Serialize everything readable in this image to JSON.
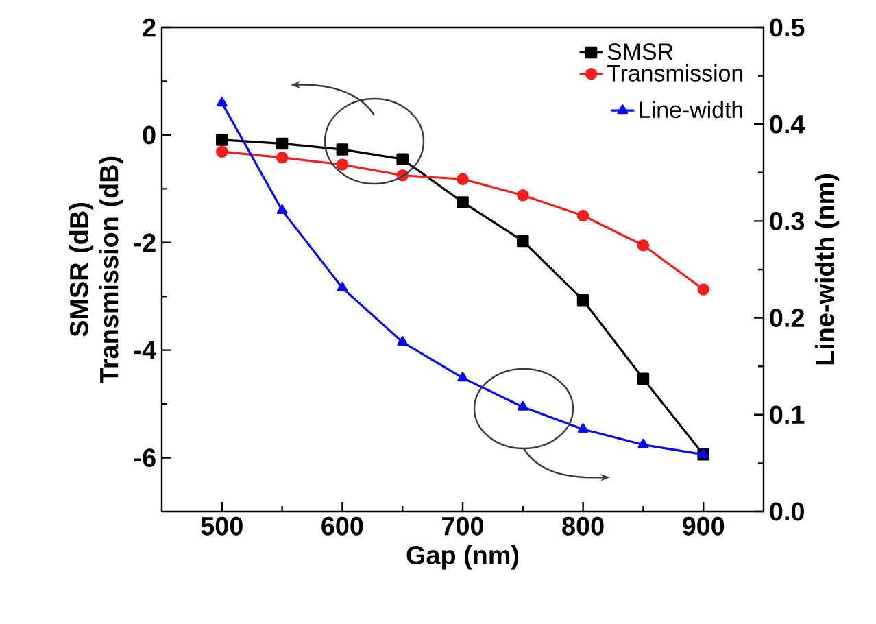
{
  "chart_data": {
    "type": "line",
    "xlabel": "Gap (nm)",
    "ylabel": "SMSR (dB) Transmission (dB)",
    "y2label": "Line-width (nm)",
    "x": [
      500,
      550,
      600,
      650,
      700,
      750,
      800,
      850,
      900
    ],
    "xlim": [
      450,
      950
    ],
    "xticks": [
      500,
      600,
      700,
      800,
      900
    ],
    "ylim": [
      -7,
      2
    ],
    "yticks": [
      -6,
      -4,
      -2,
      0,
      2
    ],
    "y2lim": [
      0,
      0.5
    ],
    "y2ticks": [
      {
        "value": 0,
        "label": "0.0"
      },
      0.1,
      0.2,
      0.3,
      0.4,
      0.5
    ],
    "legend": "top right",
    "grid": false,
    "line_style": "solid",
    "series": [
      {
        "name": "SMSR",
        "color": "#000000",
        "marker": "square",
        "values": [
          -0.09,
          -0.16,
          -0.27,
          -0.45,
          -1.25,
          -1.97,
          -3.07,
          -4.53,
          -5.94
        ]
      },
      {
        "name": "Transmission",
        "color": "#f02020",
        "marker": "circle",
        "values": [
          -0.31,
          -0.42,
          -0.55,
          -0.75,
          -0.82,
          -1.12,
          -1.5,
          -2.05,
          -2.87
        ]
      },
      {
        "name": "Line-width",
        "color": "#0a0af0",
        "marker": "triangle",
        "axis": "y2",
        "values": [
          0.422,
          0.311,
          0.231,
          0.175,
          0.138,
          0.108,
          0.085,
          0.069,
          0.059
        ]
      }
    ]
  }
}
